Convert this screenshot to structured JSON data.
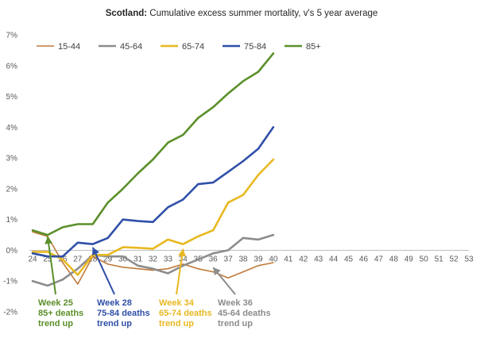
{
  "chart_data": {
    "type": "line",
    "title": {
      "bold": "Scotland:",
      "rest": " Cumulative excess summer mortality, v's 5 year average"
    },
    "xlabel": "",
    "ylabel": "",
    "x": [
      24,
      25,
      26,
      27,
      28,
      29,
      30,
      31,
      32,
      33,
      34,
      35,
      36,
      37,
      38,
      39,
      40
    ],
    "x_ticks": [
      24,
      25,
      26,
      27,
      28,
      29,
      30,
      31,
      32,
      33,
      34,
      35,
      36,
      37,
      38,
      39,
      40,
      41,
      42,
      43,
      44,
      45,
      46,
      47,
      48,
      49,
      50,
      51,
      52,
      53
    ],
    "xlim": [
      24,
      53
    ],
    "y_ticks": [
      -2,
      -1,
      0,
      1,
      2,
      3,
      4,
      5,
      6,
      7
    ],
    "y_tick_labels": [
      "-2%",
      "-1%",
      "0%",
      "1%",
      "2%",
      "3%",
      "4%",
      "5%",
      "6%",
      "7%"
    ],
    "ylim": [
      -2,
      7
    ],
    "grid": false,
    "legend_position": "top-left",
    "series": [
      {
        "name": "15-44",
        "color": "#c07a3a",
        "values": [
          0.6,
          0.45,
          -0.4,
          -1.1,
          -0.2,
          -0.45,
          -0.55,
          -0.6,
          -0.65,
          -0.6,
          -0.45,
          -0.6,
          -0.7,
          -0.9,
          -0.7,
          -0.5,
          -0.4
        ]
      },
      {
        "name": "45-64",
        "color": "#8c8c8c",
        "values": [
          -1.0,
          -1.15,
          -0.95,
          -0.6,
          -0.15,
          -0.2,
          -0.2,
          -0.5,
          -0.6,
          -0.75,
          -0.5,
          -0.3,
          -0.1,
          0.0,
          0.4,
          0.35,
          0.5
        ]
      },
      {
        "name": "65-74",
        "color": "#e8b820",
        "values": [
          -0.05,
          -0.05,
          -0.3,
          -0.8,
          -0.15,
          -0.15,
          0.1,
          0.08,
          0.05,
          0.35,
          0.2,
          0.45,
          0.65,
          1.55,
          1.8,
          2.45,
          2.95
        ]
      },
      {
        "name": "75-84",
        "color": "#2f4fa8",
        "values": [
          -0.1,
          -0.2,
          -0.2,
          0.25,
          0.2,
          0.4,
          1.0,
          0.95,
          0.92,
          1.4,
          1.65,
          2.15,
          2.2,
          2.55,
          2.9,
          3.3,
          4.0
        ]
      },
      {
        "name": "85+",
        "color": "#5b8f2a",
        "values": [
          0.65,
          0.5,
          0.75,
          0.85,
          0.85,
          1.55,
          2.0,
          2.5,
          2.95,
          3.5,
          3.75,
          4.3,
          4.65,
          5.1,
          5.5,
          5.8,
          6.4
        ]
      }
    ],
    "annotations": [
      {
        "lines": [
          "Week 25",
          "85+ deaths",
          "trend up"
        ],
        "color": "#5b8f2a",
        "arrow_x": 25,
        "arrow_y": 0.6
      },
      {
        "lines": [
          "Week 28",
          "75-84 deaths",
          "trend up"
        ],
        "color": "#2f4fa8",
        "arrow_x": 28,
        "arrow_y": 0.25
      },
      {
        "lines": [
          "Week 34",
          "65-74 deaths",
          "trend up"
        ],
        "color": "#e8b820",
        "arrow_x": 34,
        "arrow_y": 0.2
      },
      {
        "lines": [
          "Week 36",
          "45-64 deaths",
          "trend up"
        ],
        "color": "#8c8c8c",
        "arrow_x": 36,
        "arrow_y": -0.4
      }
    ]
  }
}
